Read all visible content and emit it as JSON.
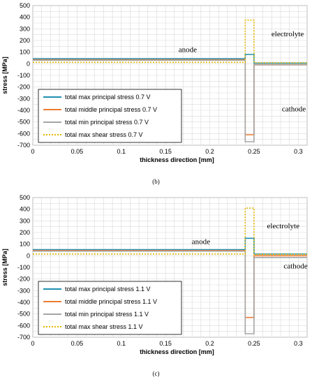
{
  "chart_data": [
    {
      "type": "line",
      "caption": "(b)",
      "xlabel": "thickness direction [mm]",
      "ylabel": "stress [MPa]",
      "xlim": [
        0,
        0.31
      ],
      "ylim": [
        -700,
        500
      ],
      "xticks": [
        "0",
        "0.05",
        "0.1",
        "0.15",
        "0.2",
        "0.25",
        "0.3"
      ],
      "yticks": [
        "500",
        "400",
        "300",
        "200",
        "100",
        "0",
        "-100",
        "-200",
        "-300",
        "-400",
        "-500",
        "-600",
        "-700"
      ],
      "grid": true,
      "legend_position": "bottom-left",
      "annotations": [
        {
          "text": "anode",
          "x": 0.175,
          "y": 100
        },
        {
          "text": "electrolyte",
          "x": 0.288,
          "y": 235
        },
        {
          "text": "cathode",
          "x": 0.295,
          "y": -410
        }
      ],
      "series": [
        {
          "name": "total max principal stress 0.7 V",
          "color": "#1f8fb2",
          "dash": false,
          "points": [
            [
              0,
              43
            ],
            [
              0.24,
              43
            ],
            [
              0.24,
              80
            ],
            [
              0.25,
              80
            ],
            [
              0.25,
              5
            ],
            [
              0.31,
              5
            ]
          ]
        },
        {
          "name": "total middle principal stress 0.7 V",
          "color": "#ed7d31",
          "dash": false,
          "points": [
            [
              0,
              35
            ],
            [
              0.24,
              35
            ],
            [
              0.24,
              -610
            ],
            [
              0.25,
              -610
            ],
            [
              0.25,
              -8
            ],
            [
              0.31,
              -8
            ]
          ]
        },
        {
          "name": "total min principal stress 0.7 V",
          "color": "#a5a5a5",
          "dash": false,
          "points": [
            [
              0,
              30
            ],
            [
              0.24,
              30
            ],
            [
              0.24,
              -670
            ],
            [
              0.25,
              -670
            ],
            [
              0.25,
              -10
            ],
            [
              0.31,
              -10
            ]
          ]
        },
        {
          "name": "total max shear stress 0.7 V",
          "color": "#e6b800",
          "dash": true,
          "points": [
            [
              0,
              12
            ],
            [
              0.24,
              12
            ],
            [
              0.24,
              375
            ],
            [
              0.25,
              375
            ],
            [
              0.25,
              10
            ],
            [
              0.31,
              10
            ]
          ]
        }
      ]
    },
    {
      "type": "line",
      "caption": "(c)",
      "xlabel": "thickness direction [mm]",
      "ylabel": "stress [MPa]",
      "xlim": [
        0,
        0.31
      ],
      "ylim": [
        -700,
        500
      ],
      "xticks": [
        "0",
        "0.05",
        "0.1",
        "0.15",
        "0.2",
        "0.25",
        "0.3"
      ],
      "yticks": [
        "500",
        "400",
        "300",
        "200",
        "100",
        "0",
        "-100",
        "-200",
        "-300",
        "-400",
        "-500",
        "-600",
        "-700"
      ],
      "grid": true,
      "legend_position": "bottom-left",
      "annotations": [
        {
          "text": "anode",
          "x": 0.19,
          "y": 100
        },
        {
          "text": "electrolyte",
          "x": 0.283,
          "y": 235
        },
        {
          "text": "cathode",
          "x": 0.297,
          "y": -110
        }
      ],
      "series": [
        {
          "name": "total max principal stress 1.1 V",
          "color": "#1f8fb2",
          "dash": false,
          "points": [
            [
              0,
              53
            ],
            [
              0.24,
              53
            ],
            [
              0.24,
              150
            ],
            [
              0.25,
              150
            ],
            [
              0.25,
              15
            ],
            [
              0.31,
              15
            ]
          ]
        },
        {
          "name": "total middle principal stress 1.1 V",
          "color": "#ed7d31",
          "dash": false,
          "points": [
            [
              0,
              45
            ],
            [
              0.24,
              45
            ],
            [
              0.24,
              -530
            ],
            [
              0.25,
              -530
            ],
            [
              0.25,
              0
            ],
            [
              0.31,
              0
            ]
          ]
        },
        {
          "name": "total min principal stress 1.1 V",
          "color": "#a5a5a5",
          "dash": false,
          "points": [
            [
              0,
              40
            ],
            [
              0.24,
              40
            ],
            [
              0.24,
              -670
            ],
            [
              0.25,
              -670
            ],
            [
              0.25,
              -15
            ],
            [
              0.31,
              -15
            ]
          ]
        },
        {
          "name": "total max shear stress 1.1 V",
          "color": "#e6b800",
          "dash": true,
          "points": [
            [
              0,
              15
            ],
            [
              0.24,
              15
            ],
            [
              0.24,
              410
            ],
            [
              0.25,
              410
            ],
            [
              0.25,
              12
            ],
            [
              0.31,
              12
            ]
          ]
        }
      ]
    }
  ]
}
